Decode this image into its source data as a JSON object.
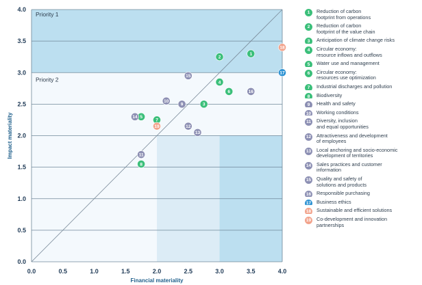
{
  "chart_data": {
    "type": "scatter",
    "title": "",
    "xlabel": "Financial materiality",
    "ylabel": "Impact materiality",
    "xlim": [
      0,
      4
    ],
    "ylim": [
      0,
      4
    ],
    "x_ticks": [
      "0.0",
      "0.5",
      "1.0",
      "1.5",
      "2.0",
      "2.5",
      "3.0",
      "3.5",
      "4.0"
    ],
    "y_ticks": [
      "0.0",
      "0.5",
      "1.0",
      "1.5",
      "2.0",
      "2.5",
      "3.0",
      "3.5",
      "4.0"
    ],
    "grid": "horizontal",
    "legend_position": "right",
    "zones": [
      {
        "label": "Priority 1",
        "y_min": 3.0,
        "color": "#bcdff0"
      },
      {
        "label": "Priority 2",
        "y_min": 2.0,
        "color": "#dcecf6"
      }
    ],
    "diagonal": true,
    "points": [
      {
        "id": "1",
        "label": "Reduction of carbon\nfootprint from operations",
        "x": 3.5,
        "y": 3.3,
        "color": "#3bbf7a"
      },
      {
        "id": "2",
        "label": "Reduction of carbon\nfootprint of the value chain",
        "x": 3.0,
        "y": 3.25,
        "color": "#3bbf7a"
      },
      {
        "id": "3",
        "label": "Anticipation of climate change risks",
        "x": 2.75,
        "y": 2.5,
        "color": "#3bbf7a"
      },
      {
        "id": "4",
        "label": "Circular economy:\nresource inflows and outflows",
        "x": 3.0,
        "y": 2.85,
        "color": "#3bbf7a"
      },
      {
        "id": "5",
        "label": "Water use and management",
        "x": 1.75,
        "y": 2.3,
        "color": "#3bbf7a"
      },
      {
        "id": "6",
        "label": "Circular economy:\nresources use optimization",
        "x": 3.15,
        "y": 2.7,
        "color": "#3bbf7a"
      },
      {
        "id": "7",
        "label": "Industrial discharges and pollution",
        "x": 2.0,
        "y": 2.25,
        "color": "#3bbf7a"
      },
      {
        "id": "8",
        "label": "Biodiversity",
        "x": 1.75,
        "y": 1.55,
        "color": "#3bbf7a"
      },
      {
        "id": "9",
        "label": "Health and safety",
        "x": 2.4,
        "y": 2.5,
        "color": "#8c8fb3"
      },
      {
        "id": "10",
        "label": "Working conditions",
        "x": 2.15,
        "y": 2.55,
        "color": "#8c8fb3"
      },
      {
        "id": "11",
        "label": "Diversity, inclusion\nand equal opportunities",
        "x": 1.75,
        "y": 1.7,
        "color": "#8c8fb3"
      },
      {
        "id": "12",
        "label": "Attractiveness and development\nof employees",
        "x": 2.5,
        "y": 2.15,
        "color": "#8c8fb3"
      },
      {
        "id": "13",
        "label": "Local anchoring and socio-economic\ndevelopment of territories",
        "x": 2.65,
        "y": 2.05,
        "color": "#8c8fb3"
      },
      {
        "id": "14",
        "label": "Sales practices and customer\ninformation",
        "x": 1.65,
        "y": 2.3,
        "color": "#8c8fb3"
      },
      {
        "id": "15",
        "label": "Quality and safety of\nsolutions and products",
        "x": 2.5,
        "y": 2.95,
        "color": "#8c8fb3"
      },
      {
        "id": "16",
        "label": "Responsible purchasing",
        "x": 3.5,
        "y": 2.7,
        "color": "#8c8fb3"
      },
      {
        "id": "17",
        "label": "Business ethics",
        "x": 4.0,
        "y": 3.0,
        "color": "#2f93d3"
      },
      {
        "id": "18",
        "label": "Sustainable and efficient solutions",
        "x": 4.0,
        "y": 3.4,
        "color": "#f2a38c"
      },
      {
        "id": "19",
        "label": "Co-development and innovation\npartnerships",
        "x": 2.0,
        "y": 2.15,
        "color": "#f2a38c"
      }
    ]
  }
}
